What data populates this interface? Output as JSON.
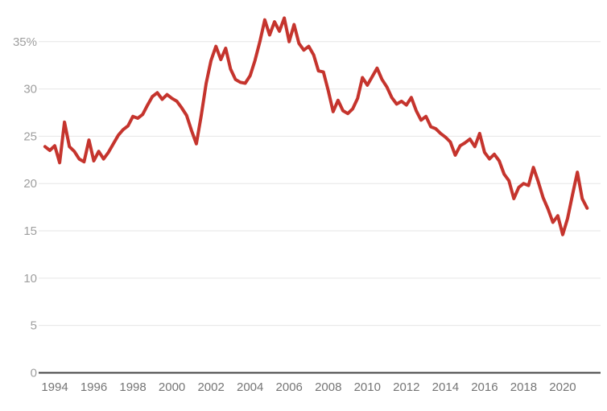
{
  "chart_data": {
    "type": "line",
    "title": "",
    "xlabel": "",
    "ylabel": "",
    "unit": "%",
    "legend": "none",
    "grid": "horizontal",
    "ylim": [
      0,
      38
    ],
    "xlim": [
      1993.2,
      2021.9
    ],
    "yticks": [
      0,
      5,
      10,
      15,
      20,
      25,
      30,
      35
    ],
    "ytick_labels": [
      "0",
      "5",
      "10",
      "15",
      "20",
      "25",
      "30",
      "35%"
    ],
    "xticks": [
      1994,
      1996,
      1998,
      2000,
      2002,
      2004,
      2006,
      2008,
      2010,
      2012,
      2014,
      2016,
      2018,
      2020
    ],
    "xtick_labels": [
      "1994",
      "1996",
      "1998",
      "2000",
      "2002",
      "2004",
      "2006",
      "2008",
      "2010",
      "2012",
      "2014",
      "2016",
      "2018",
      "2020"
    ],
    "x": [
      1993.5,
      1993.75,
      1994,
      1994.25,
      1994.5,
      1994.75,
      1995,
      1995.25,
      1995.5,
      1995.75,
      1996,
      1996.25,
      1996.5,
      1996.75,
      1997,
      1997.25,
      1997.5,
      1997.75,
      1998,
      1998.25,
      1998.5,
      1998.75,
      1999,
      1999.25,
      1999.5,
      1999.75,
      2000,
      2000.25,
      2000.5,
      2000.75,
      2001,
      2001.25,
      2001.5,
      2001.75,
      2002,
      2002.25,
      2002.5,
      2002.75,
      2003,
      2003.25,
      2003.5,
      2003.75,
      2004,
      2004.25,
      2004.5,
      2004.75,
      2005,
      2005.25,
      2005.5,
      2005.75,
      2006,
      2006.25,
      2006.5,
      2006.75,
      2007,
      2007.25,
      2007.5,
      2007.75,
      2008,
      2008.25,
      2008.5,
      2008.75,
      2009,
      2009.25,
      2009.5,
      2009.75,
      2010,
      2010.25,
      2010.5,
      2010.75,
      2011,
      2011.25,
      2011.5,
      2011.75,
      2012,
      2012.25,
      2012.5,
      2012.75,
      2013,
      2013.25,
      2013.5,
      2013.75,
      2014,
      2014.25,
      2014.5,
      2014.75,
      2015,
      2015.25,
      2015.5,
      2015.75,
      2016,
      2016.25,
      2016.5,
      2016.75,
      2017,
      2017.25,
      2017.5,
      2017.75,
      2018,
      2018.25,
      2018.5,
      2018.75,
      2019,
      2019.25,
      2019.5,
      2019.75,
      2020,
      2020.25,
      2020.5,
      2020.75,
      2021,
      2021.25
    ],
    "values": [
      23.9,
      23.5,
      24.0,
      22.2,
      26.5,
      23.9,
      23.4,
      22.6,
      22.3,
      24.6,
      22.4,
      23.4,
      22.6,
      23.3,
      24.2,
      25.1,
      25.7,
      26.1,
      27.1,
      26.9,
      27.3,
      28.3,
      29.2,
      29.6,
      28.9,
      29.4,
      29.0,
      28.7,
      28.0,
      27.2,
      25.6,
      24.2,
      27.2,
      30.6,
      33.0,
      34.5,
      33.1,
      34.3,
      32.1,
      31.0,
      30.7,
      30.6,
      31.4,
      33.0,
      35.0,
      37.3,
      35.7,
      37.1,
      36.1,
      37.5,
      35.0,
      36.8,
      34.8,
      34.1,
      34.5,
      33.6,
      31.9,
      31.8,
      29.8,
      27.6,
      28.8,
      27.7,
      27.4,
      27.9,
      29.0,
      31.2,
      30.4,
      31.3,
      32.2,
      31.0,
      30.2,
      29.1,
      28.4,
      28.7,
      28.3,
      29.1,
      27.7,
      26.7,
      27.1,
      26.0,
      25.8,
      25.3,
      24.9,
      24.4,
      23.0,
      24.0,
      24.3,
      24.7,
      23.9,
      25.3,
      23.3,
      22.6,
      23.1,
      22.4,
      21.0,
      20.3,
      18.4,
      19.6,
      20.0,
      19.8,
      21.7,
      20.2,
      18.5,
      17.3,
      15.9,
      16.6,
      14.6,
      16.3,
      18.8,
      21.2,
      18.4,
      17.4
    ],
    "line_color": "#c5342d",
    "gridline_color": "#e6e6e6",
    "axis_line_color": "#424242",
    "ytick_label_color": "#9e9e9e",
    "xtick_label_color": "#757575",
    "background_color": "#ffffff"
  }
}
